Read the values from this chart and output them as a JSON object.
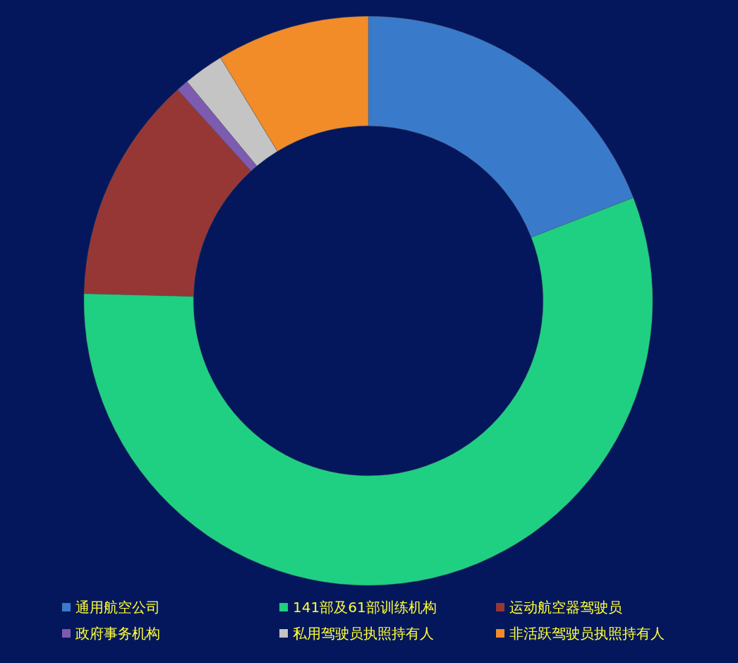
{
  "chart_data": {
    "type": "donut",
    "categories": [
      "通用航空公司",
      "141部及61部训练机构",
      "运动航空器驾驶员",
      "政府事务机构",
      "私用驾驶员执照持有人",
      "非活跃驾驶员执照持有人"
    ],
    "values": [
      19.1,
      56.3,
      12.9,
      0.7,
      2.3,
      8.7
    ],
    "colors": [
      "#3a7acb",
      "#1fd082",
      "#963735",
      "#7d5bb0",
      "#c4c4c4",
      "#f28c28"
    ],
    "legend": "bottom"
  }
}
